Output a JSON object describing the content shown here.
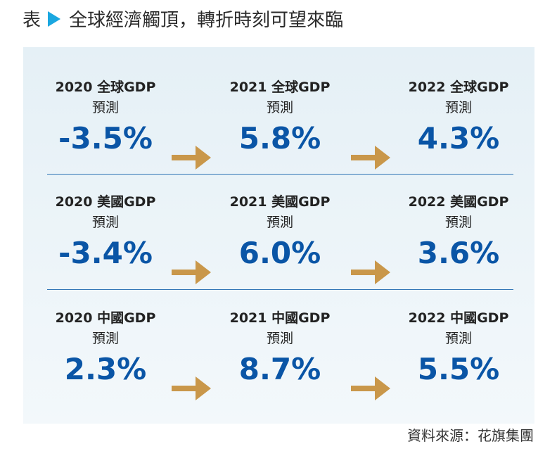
{
  "title": {
    "prefix": "表",
    "text": "全球經濟觸頂，轉折時刻可望來臨"
  },
  "rows": [
    {
      "cells": [
        {
          "label": "2020 全球GDP",
          "sub": "預測",
          "value": "-3.5%"
        },
        {
          "label": "2021 全球GDP",
          "sub": "預測",
          "value": "5.8%"
        },
        {
          "label": "2022 全球GDP",
          "sub": "預測",
          "value": "4.3%"
        }
      ]
    },
    {
      "cells": [
        {
          "label": "2020 美國GDP",
          "sub": "預測",
          "value": "-3.4%"
        },
        {
          "label": "2021 美國GDP",
          "sub": "預測",
          "value": "6.0%"
        },
        {
          "label": "2022 美國GDP",
          "sub": "預測",
          "value": "3.6%"
        }
      ]
    },
    {
      "cells": [
        {
          "label": "2020 中國GDP",
          "sub": "預測",
          "value": "2.3%"
        },
        {
          "label": "2021 中國GDP",
          "sub": "預測",
          "value": "8.7%"
        },
        {
          "label": "2022 中國GDP",
          "sub": "預測",
          "value": "5.5%"
        }
      ]
    }
  ],
  "source": "資料來源：花旗集團",
  "colors": {
    "value": "#0a55a6",
    "arrow": "#c9974a",
    "accent": "#1aa7e0"
  }
}
